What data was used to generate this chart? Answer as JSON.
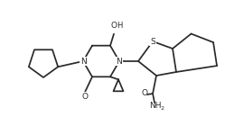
{
  "bg": "#ffffff",
  "lc": "#2a2a2a",
  "lw": 1.25,
  "fs": 6.5,
  "figsize": [
    2.7,
    1.4
  ],
  "dpi": 100,
  "xlim": [
    0,
    270
  ],
  "ylim": [
    0,
    140
  ]
}
